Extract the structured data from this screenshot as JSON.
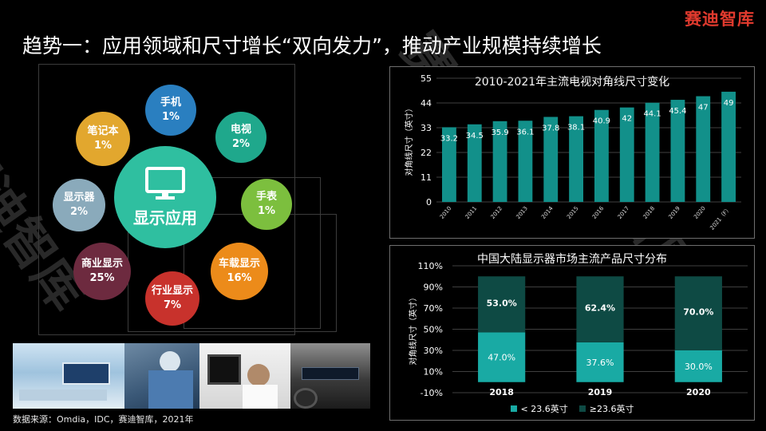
{
  "brand": "赛迪智库",
  "title": "趋势一：应用领域和尺寸增长“双向发力”，推动产业规模持续增长",
  "display_apps": {
    "center_label": "显示应用",
    "items": [
      {
        "label": "手机",
        "value": "1%",
        "color": "#2a7fc0"
      },
      {
        "label": "电视",
        "value": "2%",
        "color": "#1fa88c"
      },
      {
        "label": "手表",
        "value": "1%",
        "color": "#7cbf3e"
      },
      {
        "label": "车载显示",
        "value": "16%",
        "color": "#ec8b1a"
      },
      {
        "label": "行业显示",
        "value": "7%",
        "color": "#c8322c"
      },
      {
        "label": "商业显示",
        "value": "25%",
        "color": "#6d2a3f"
      },
      {
        "label": "显示器",
        "value": "2%",
        "color": "#8aaabb"
      },
      {
        "label": "笔记本",
        "value": "1%",
        "color": "#e2a72e"
      }
    ]
  },
  "source": "数据来源：Omdia，IDC，赛迪智库，2021年",
  "watermark": "赛迪智库",
  "chart_data": [
    {
      "type": "bar",
      "title": "2010-2021年主流电视对角线尺寸变化",
      "ylabel": "对角线尺寸（英寸）",
      "categories": [
        "2010",
        "2011",
        "2012",
        "2013",
        "2014",
        "2015",
        "2016",
        "2017",
        "2018",
        "2019",
        "2020",
        "2021（F）"
      ],
      "values": [
        33.2,
        34.5,
        35.9,
        36.1,
        37.8,
        38.1,
        40.9,
        42,
        44.1,
        45.4,
        47,
        49
      ],
      "value_labels": [
        "33.2",
        "34.5",
        "35.9",
        "36.1",
        "37.8",
        "38.1",
        "40.9",
        "42",
        "44.1",
        "45.4",
        "47",
        "49"
      ],
      "ylim": [
        0,
        55
      ],
      "yticks": [
        "0",
        "11",
        "22",
        "33",
        "44",
        "55"
      ],
      "color": "#12908a"
    },
    {
      "type": "bar",
      "title": "中国大陆显示器市场主流产品尺寸分布",
      "ylabel": "对角线尺寸（英寸）",
      "stacked": true,
      "categories": [
        "2018",
        "2019",
        "2020"
      ],
      "series": [
        {
          "name": "< 23.6英寸",
          "values": [
            47.0,
            37.6,
            30.0
          ],
          "labels": [
            "47.0%",
            "37.6%",
            "30.0%"
          ],
          "color": "#19aaa4"
        },
        {
          "name": "≥23.6英寸",
          "values": [
            53.0,
            62.4,
            70.0
          ],
          "labels": [
            "53.0%",
            "62.4%",
            "70.0%"
          ],
          "color": "#0e4a44"
        }
      ],
      "ylim": [
        -10,
        110
      ],
      "yticks": [
        "-10%",
        "10%",
        "30%",
        "50%",
        "70%",
        "90%",
        "110%"
      ],
      "legend": "bottom"
    }
  ]
}
